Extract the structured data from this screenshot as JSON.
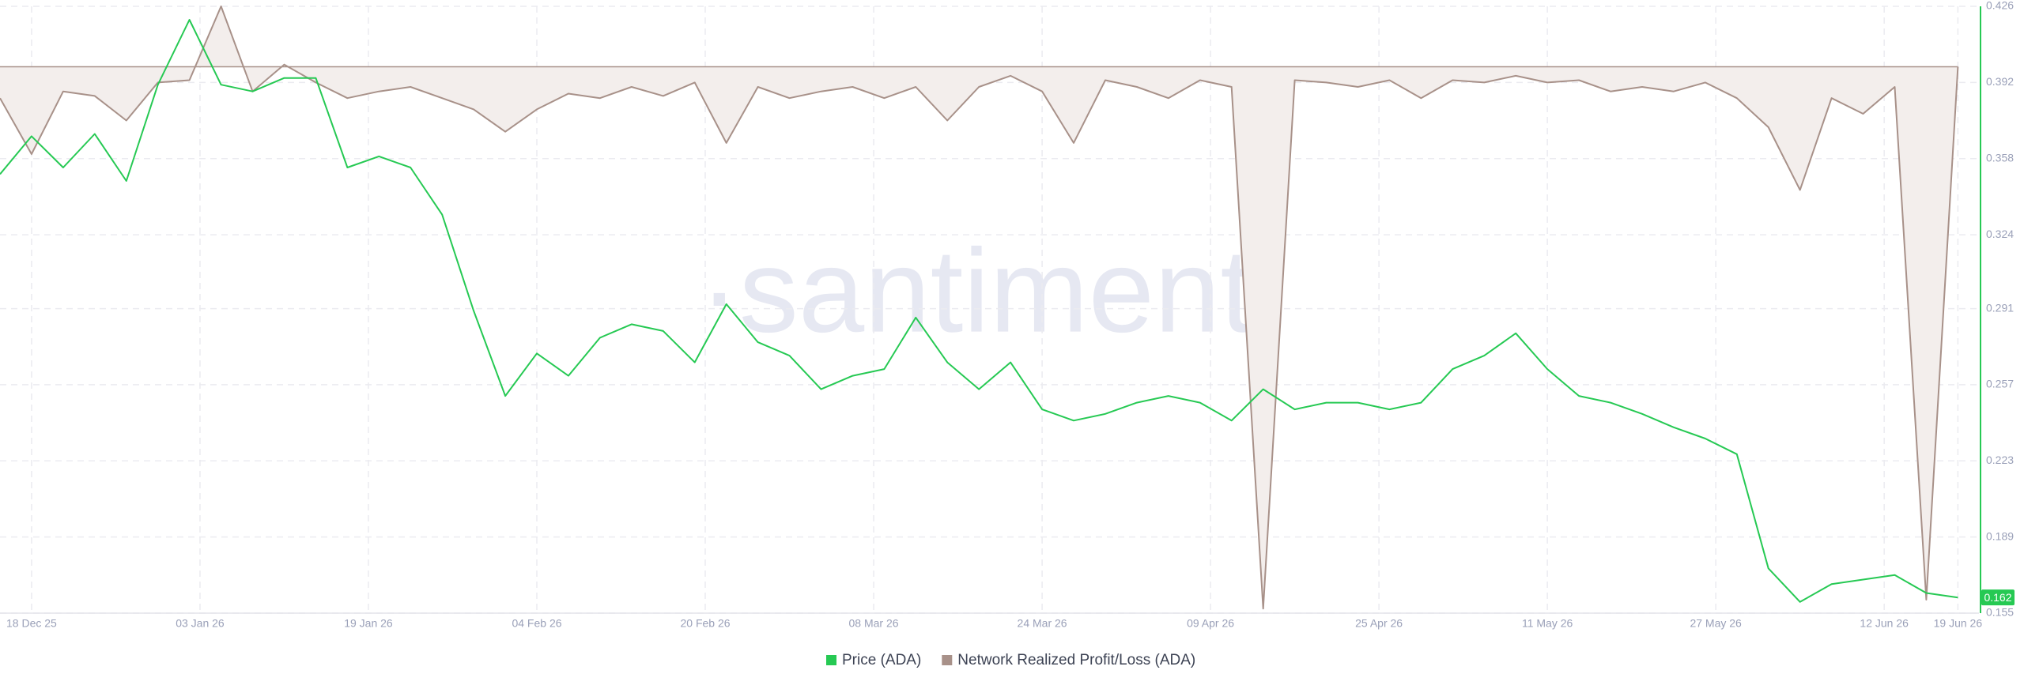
{
  "chart_data": {
    "type": "line",
    "watermark": "·santiment·",
    "x": [
      "2025-12-15",
      "2025-12-18",
      "2025-12-21",
      "2025-12-24",
      "2025-12-27",
      "2025-12-30",
      "2026-01-02",
      "2026-01-05",
      "2026-01-08",
      "2026-01-11",
      "2026-01-14",
      "2026-01-17",
      "2026-01-20",
      "2026-01-23",
      "2026-01-26",
      "2026-01-29",
      "2026-02-01",
      "2026-02-04",
      "2026-02-07",
      "2026-02-10",
      "2026-02-13",
      "2026-02-16",
      "2026-02-19",
      "2026-02-22",
      "2026-02-25",
      "2026-02-28",
      "2026-03-03",
      "2026-03-06",
      "2026-03-09",
      "2026-03-12",
      "2026-03-15",
      "2026-03-18",
      "2026-03-21",
      "2026-03-24",
      "2026-03-27",
      "2026-03-30",
      "2026-04-02",
      "2026-04-05",
      "2026-04-08",
      "2026-04-11",
      "2026-04-14",
      "2026-04-17",
      "2026-04-20",
      "2026-04-23",
      "2026-04-26",
      "2026-04-29",
      "2026-05-02",
      "2026-05-05",
      "2026-05-08",
      "2026-05-11",
      "2026-05-14",
      "2026-05-17",
      "2026-05-20",
      "2026-05-23",
      "2026-05-26",
      "2026-05-29",
      "2026-06-01",
      "2026-06-04",
      "2026-06-07",
      "2026-06-10",
      "2026-06-13",
      "2026-06-16",
      "2026-06-19"
    ],
    "series": [
      {
        "name": "Price (ADA)",
        "color": "#26c953",
        "values": [
          0.351,
          0.368,
          0.354,
          0.369,
          0.348,
          0.391,
          0.42,
          0.391,
          0.388,
          0.394,
          0.394,
          0.354,
          0.359,
          0.354,
          0.333,
          0.29,
          0.252,
          0.271,
          0.261,
          0.278,
          0.284,
          0.281,
          0.267,
          0.293,
          0.276,
          0.27,
          0.255,
          0.261,
          0.264,
          0.287,
          0.267,
          0.255,
          0.267,
          0.246,
          0.241,
          0.244,
          0.249,
          0.252,
          0.249,
          0.241,
          0.255,
          0.246,
          0.249,
          0.249,
          0.246,
          0.249,
          0.264,
          0.27,
          0.28,
          0.264,
          0.252,
          0.249,
          0.244,
          0.238,
          0.233,
          0.226,
          0.175,
          0.16,
          0.168,
          0.17,
          0.172,
          0.164,
          0.162
        ]
      },
      {
        "name": "Network Realized Profit/Loss (ADA)",
        "color": "#a89189",
        "fill": "#f3eeec",
        "values": [
          0.385,
          0.36,
          0.388,
          0.386,
          0.375,
          0.392,
          0.393,
          0.426,
          0.388,
          0.4,
          0.392,
          0.385,
          0.388,
          0.39,
          0.385,
          0.38,
          0.37,
          0.38,
          0.387,
          0.385,
          0.39,
          0.386,
          0.392,
          0.365,
          0.39,
          0.385,
          0.388,
          0.39,
          0.385,
          0.39,
          0.375,
          0.39,
          0.395,
          0.388,
          0.365,
          0.393,
          0.39,
          0.385,
          0.393,
          0.39,
          0.157,
          0.393,
          0.392,
          0.39,
          0.393,
          0.385,
          0.393,
          0.392,
          0.395,
          0.392,
          0.393,
          0.388,
          0.39,
          0.388,
          0.392,
          0.385,
          0.372,
          0.344,
          0.385,
          0.378,
          0.39,
          0.161,
          0.399
        ]
      }
    ],
    "xlim": [
      "2025-12-15",
      "2026-06-21"
    ],
    "xticks": [
      {
        "value": "2025-12-18",
        "label": "18 Dec 25"
      },
      {
        "value": "2026-01-03",
        "label": "03 Jan 26"
      },
      {
        "value": "2026-01-19",
        "label": "19 Jan 26"
      },
      {
        "value": "2026-02-04",
        "label": "04 Feb 26"
      },
      {
        "value": "2026-02-20",
        "label": "20 Feb 26"
      },
      {
        "value": "2026-03-08",
        "label": "08 Mar 26"
      },
      {
        "value": "2026-03-24",
        "label": "24 Mar 26"
      },
      {
        "value": "2026-04-09",
        "label": "09 Apr 26"
      },
      {
        "value": "2026-04-25",
        "label": "25 Apr 26"
      },
      {
        "value": "2026-05-11",
        "label": "11 May 26"
      },
      {
        "value": "2026-05-27",
        "label": "27 May 26"
      },
      {
        "value": "2026-06-12",
        "label": "12 Jun 26"
      },
      {
        "value": "2026-06-19",
        "label": "19 Jun 26"
      }
    ],
    "ylim": [
      0.155,
      0.426
    ],
    "yticks": [
      0.155,
      0.189,
      0.223,
      0.257,
      0.291,
      0.324,
      0.358,
      0.392,
      0.426
    ],
    "grid": true
  }
}
